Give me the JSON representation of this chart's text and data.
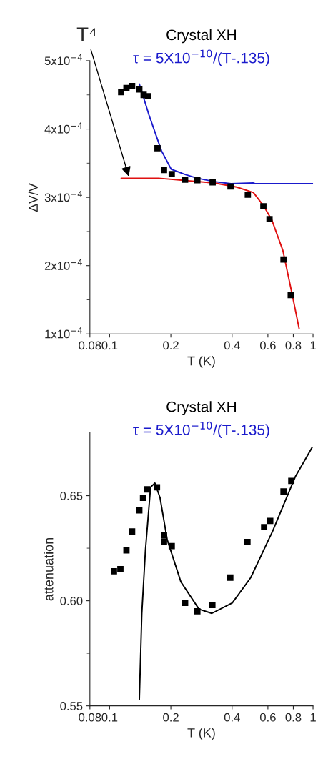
{
  "chart_data": [
    {
      "type": "scatter",
      "xlabel": "T (K)",
      "ylabel": "∆V/V",
      "log": "x",
      "grid": false,
      "xlim": [
        0.08,
        1
      ],
      "xticks": [
        0.08,
        0.1,
        0.2,
        0.4,
        0.6,
        0.8,
        1
      ],
      "ylim": [
        0.0001,
        0.0005
      ],
      "yticks": [
        {
          "value": 0.0001,
          "label": "1x10$^{−4}$"
        },
        {
          "value": 0.0002,
          "label": "2x10$^{−4}$"
        },
        {
          "value": 0.0003,
          "label": "3x10$^{−4}$"
        },
        {
          "value": 0.0004,
          "label": "4x10$^{−4}$"
        },
        {
          "value": 0.0005,
          "label": "5x10$^{−4}$"
        }
      ],
      "annotations": [
        "Crystal XH",
        "τ = 5X10$^{−10}$/(T-.135)",
        {
          "text": "T⁴",
          "x": 0.125,
          "y": 0.000328
        }
      ],
      "series": [
        {
          "marker": "square",
          "color": "#000000",
          "x": [
            0.114,
            0.121,
            0.129,
            0.14,
            0.147,
            0.154,
            0.172,
            0.185,
            0.202,
            0.235,
            0.27,
            0.321,
            0.393,
            0.478,
            0.57,
            0.611,
            0.716,
            0.777
          ],
          "values": [
            0.000454,
            0.00046,
            0.000463,
            0.000458,
            0.00045,
            0.000448,
            0.000372,
            0.00034,
            0.000334,
            0.000326,
            0.000325,
            0.000322,
            0.000316,
            0.000304,
            0.000287,
            0.000268,
            0.000209,
            0.000157
          ]
        },
        {
          "type": "line",
          "color": "#1a1acc",
          "x": [
            0.14,
            0.156,
            0.18,
            0.201,
            0.238,
            0.27,
            0.327,
            0.395,
            0.509,
            0.519,
            1.0
          ],
          "values": [
            0.000466,
            0.000421,
            0.000368,
            0.000341,
            0.000333,
            0.000328,
            0.000323,
            0.00032,
            0.000321,
            0.00032,
            0.00032
          ]
        },
        {
          "type": "line",
          "color": "#e01010",
          "x": [
            0.114,
            0.174,
            0.327,
            0.421,
            0.509,
            0.57,
            0.627,
            0.711,
            0.792,
            0.854
          ],
          "values": [
            0.000328,
            0.000328,
            0.000321,
            0.000315,
            0.000307,
            0.000288,
            0.000267,
            0.000222,
            0.000156,
            0.000108
          ]
        }
      ]
    },
    {
      "type": "scatter",
      "xlabel": "T (K)",
      "ylabel": "attenuation",
      "log": "x",
      "grid": false,
      "xlim": [
        0.08,
        1
      ],
      "xticks": [
        0.08,
        0.1,
        0.2,
        0.4,
        0.6,
        0.8,
        1
      ],
      "ylim": [
        0.55,
        0.68
      ],
      "yticks": [
        {
          "value": 0.55,
          "label": "0.55"
        },
        {
          "value": 0.6,
          "label": "0.60"
        },
        {
          "value": 0.65,
          "label": "0.65"
        }
      ],
      "annotations": [
        "Crystal XH",
        "τ = 5X10$^{−10}$/(T-.135)"
      ],
      "series": [
        {
          "marker": "square",
          "color": "#000000",
          "x": [
            0.782,
            0.716,
            0.616,
            0.575,
            0.476,
            0.392,
            0.32,
            0.27,
            0.235,
            0.202,
            0.185,
            0.185,
            0.171,
            0.153,
            0.146,
            0.14,
            0.129,
            0.121,
            0.113,
            0.105
          ],
          "values": [
            0.657,
            0.652,
            0.638,
            0.635,
            0.628,
            0.611,
            0.598,
            0.595,
            0.599,
            0.626,
            0.628,
            0.631,
            0.654,
            0.653,
            0.649,
            0.643,
            0.633,
            0.624,
            0.615,
            0.614
          ]
        },
        {
          "type": "line",
          "color": "#000000",
          "x": [
            0.99,
            0.818,
            0.632,
            0.494,
            0.401,
            0.318,
            0.275,
            0.224,
            0.192,
            0.177,
            0.167,
            0.159,
            0.15,
            0.144,
            0.14
          ],
          "values": [
            0.673,
            0.659,
            0.633,
            0.611,
            0.599,
            0.594,
            0.596,
            0.609,
            0.629,
            0.649,
            0.656,
            0.654,
            0.624,
            0.594,
            0.553
          ]
        }
      ]
    }
  ]
}
